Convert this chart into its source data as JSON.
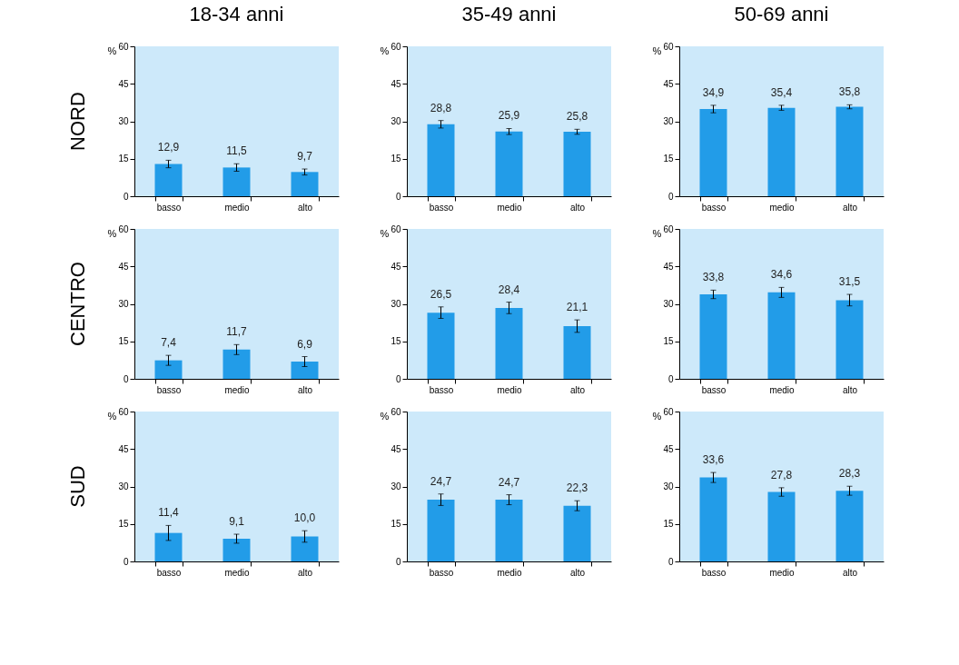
{
  "chart_data": [
    {
      "type": "bar",
      "title": "18-34 anni",
      "ylabel": "%",
      "annotations": [
        "NORD"
      ],
      "categories": [
        "basso",
        "medio",
        "alto"
      ],
      "values": [
        12.9,
        11.5,
        9.7
      ],
      "errors": [
        1.5,
        1.5,
        1.2
      ],
      "value_labels": [
        "12,9",
        "11,5",
        "9,7"
      ],
      "color": "#229ce8",
      "ylim": [
        0,
        60
      ],
      "yticks": [
        0,
        15,
        30,
        45,
        60
      ]
    },
    {
      "type": "bar",
      "title": "35-49 anni",
      "ylabel": "%",
      "categories": [
        "basso",
        "medio",
        "alto"
      ],
      "values": [
        28.8,
        25.9,
        25.8
      ],
      "errors": [
        1.5,
        1.2,
        1.0
      ],
      "value_labels": [
        "28,8",
        "25,9",
        "25,8"
      ],
      "color": "#229ce8",
      "ylim": [
        0,
        60
      ],
      "yticks": [
        0,
        15,
        30,
        45,
        60
      ]
    },
    {
      "type": "bar",
      "title": "50-69 anni",
      "ylabel": "%",
      "categories": [
        "basso",
        "medio",
        "alto"
      ],
      "values": [
        34.9,
        35.4,
        35.8
      ],
      "errors": [
        1.5,
        1.0,
        0.8
      ],
      "value_labels": [
        "34,9",
        "35,4",
        "35,8"
      ],
      "color": "#229ce8",
      "ylim": [
        0,
        60
      ],
      "yticks": [
        0,
        15,
        30,
        45,
        60
      ]
    },
    {
      "type": "bar",
      "ylabel": "%",
      "annotations": [
        "CENTRO"
      ],
      "categories": [
        "basso",
        "medio",
        "alto"
      ],
      "values": [
        7.4,
        11.7,
        6.9
      ],
      "errors": [
        2.0,
        2.0,
        2.0
      ],
      "value_labels": [
        "7,4",
        "11,7",
        "6,9"
      ],
      "color": "#229ce8",
      "ylim": [
        0,
        60
      ],
      "yticks": [
        0,
        15,
        30,
        45,
        60
      ]
    },
    {
      "type": "bar",
      "ylabel": "%",
      "categories": [
        "basso",
        "medio",
        "alto"
      ],
      "values": [
        26.5,
        28.4,
        21.1
      ],
      "errors": [
        2.3,
        2.3,
        2.5
      ],
      "value_labels": [
        "26,5",
        "28,4",
        "21,1"
      ],
      "color": "#229ce8",
      "ylim": [
        0,
        60
      ],
      "yticks": [
        0,
        15,
        30,
        45,
        60
      ]
    },
    {
      "type": "bar",
      "ylabel": "%",
      "categories": [
        "basso",
        "medio",
        "alto"
      ],
      "values": [
        33.8,
        34.6,
        31.5
      ],
      "errors": [
        1.7,
        2.0,
        2.3
      ],
      "value_labels": [
        "33,8",
        "34,6",
        "31,5"
      ],
      "color": "#229ce8",
      "ylim": [
        0,
        60
      ],
      "yticks": [
        0,
        15,
        30,
        45,
        60
      ]
    },
    {
      "type": "bar",
      "ylabel": "%",
      "annotations": [
        "SUD"
      ],
      "categories": [
        "basso",
        "medio",
        "alto"
      ],
      "values": [
        11.4,
        9.1,
        10.0
      ],
      "errors": [
        3.0,
        1.8,
        2.3
      ],
      "value_labels": [
        "11,4",
        "9,1",
        "10,0"
      ],
      "color": "#229ce8",
      "ylim": [
        0,
        60
      ],
      "yticks": [
        0,
        15,
        30,
        45,
        60
      ]
    },
    {
      "type": "bar",
      "ylabel": "%",
      "categories": [
        "basso",
        "medio",
        "alto"
      ],
      "values": [
        24.7,
        24.7,
        22.3
      ],
      "errors": [
        2.3,
        2.0,
        2.0
      ],
      "value_labels": [
        "24,7",
        "24,7",
        "22,3"
      ],
      "color": "#229ce8",
      "ylim": [
        0,
        60
      ],
      "yticks": [
        0,
        15,
        30,
        45,
        60
      ]
    },
    {
      "type": "bar",
      "ylabel": "%",
      "categories": [
        "basso",
        "medio",
        "alto"
      ],
      "values": [
        33.6,
        27.8,
        28.3
      ],
      "errors": [
        2.0,
        1.7,
        1.8
      ],
      "value_labels": [
        "33,6",
        "27,8",
        "28,3"
      ],
      "color": "#229ce8",
      "ylim": [
        0,
        60
      ],
      "yticks": [
        0,
        15,
        30,
        45,
        60
      ]
    }
  ]
}
